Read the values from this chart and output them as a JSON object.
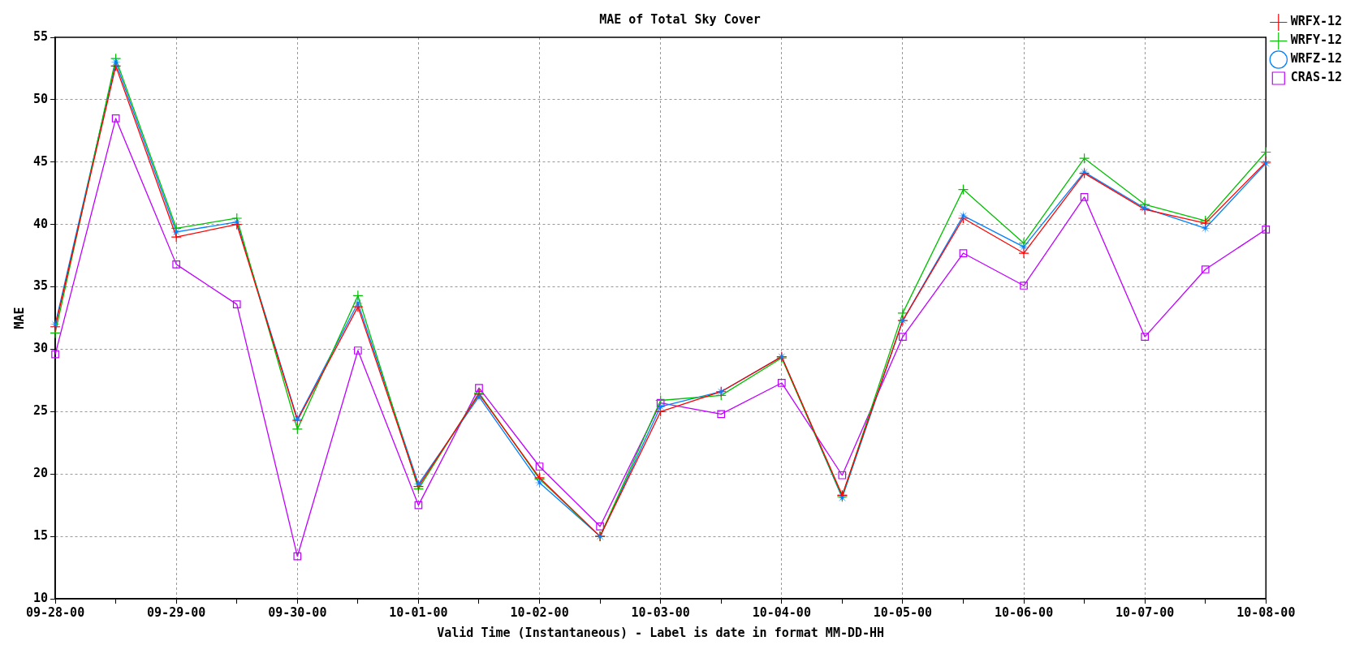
{
  "chart_data": {
    "type": "line",
    "title": "MAE of Total Sky Cover",
    "xlabel": "Valid Time (Instantaneous) - Label is date in format MM-DD-HH",
    "ylabel": "MAE",
    "categories": [
      "09-28-00",
      null,
      "09-29-00",
      null,
      "09-30-00",
      null,
      "10-01-00",
      null,
      "10-02-00",
      null,
      "10-03-00",
      null,
      "10-04-00",
      null,
      "10-05-00",
      null,
      "10-06-00",
      null,
      "10-07-00",
      null,
      "10-08-00"
    ],
    "series": [
      {
        "name": "WRFX-12",
        "color": "#ff0000",
        "marker": "cross",
        "values": [
          31.8,
          52.7,
          39.0,
          40.0,
          24.3,
          33.4,
          19.0,
          26.4,
          19.7,
          15.0,
          25.0,
          26.6,
          29.4,
          18.3,
          32.3,
          40.5,
          37.7,
          44.1,
          41.2,
          40.1,
          45.0
        ]
      },
      {
        "name": "WRFY-12",
        "color": "#00c000",
        "marker": "cross",
        "values": [
          31.3,
          53.3,
          39.7,
          40.5,
          23.6,
          34.3,
          18.8,
          26.5,
          19.6,
          15.0,
          25.9,
          26.3,
          29.3,
          18.2,
          32.9,
          42.8,
          38.5,
          45.3,
          41.6,
          40.3,
          45.8
        ]
      },
      {
        "name": "WRFZ-12",
        "color": "#0080ff",
        "marker": "star",
        "values": [
          32.0,
          53.0,
          39.4,
          40.2,
          24.4,
          33.7,
          19.2,
          26.2,
          19.3,
          15.0,
          25.4,
          26.6,
          29.4,
          18.1,
          32.3,
          40.7,
          38.2,
          44.2,
          41.3,
          39.7,
          44.9
        ]
      },
      {
        "name": "CRAS-12",
        "color": "#c000ff",
        "marker": "square",
        "values": [
          29.6,
          48.5,
          36.8,
          33.6,
          13.4,
          29.9,
          17.5,
          26.9,
          20.6,
          15.8,
          25.7,
          24.8,
          27.3,
          19.9,
          31.0,
          37.7,
          35.1,
          42.2,
          31.0,
          36.4,
          39.6
        ]
      }
    ],
    "ylim": [
      10,
      55
    ],
    "yticks": [
      10,
      15,
      20,
      25,
      30,
      35,
      40,
      45,
      50,
      55
    ],
    "grid": true,
    "legend": "top right",
    "line_style": "solid"
  }
}
